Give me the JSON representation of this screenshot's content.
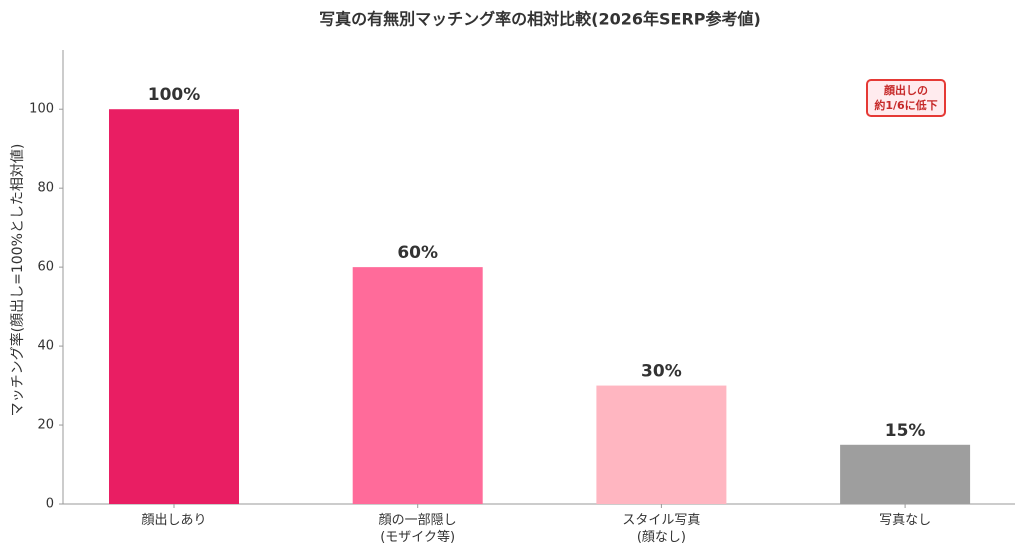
{
  "chart_data": {
    "type": "bar",
    "title": "写真の有無別マッチング率の相対比較(2026年SERP参考値)",
    "y_label": "マッチング率(顔出し=100%とした相対値)",
    "categories": [
      "顔出しあり",
      "顔の一部隠し\n(モザイク等)",
      "スタイル写真\n(顔なし)",
      "写真なし"
    ],
    "values": [
      100,
      60,
      30,
      15
    ],
    "value_labels": [
      "100%",
      "60%",
      "30%",
      "15%"
    ],
    "colors": [
      "#e91e63",
      "#ff6b9a",
      "#ffb6c1",
      "#9e9e9e"
    ],
    "ylim": [
      0,
      115
    ],
    "yticks": [
      0,
      20,
      40,
      60,
      80,
      100
    ],
    "grid": false,
    "annotation": "顔出しの\n約1/6に低下"
  }
}
